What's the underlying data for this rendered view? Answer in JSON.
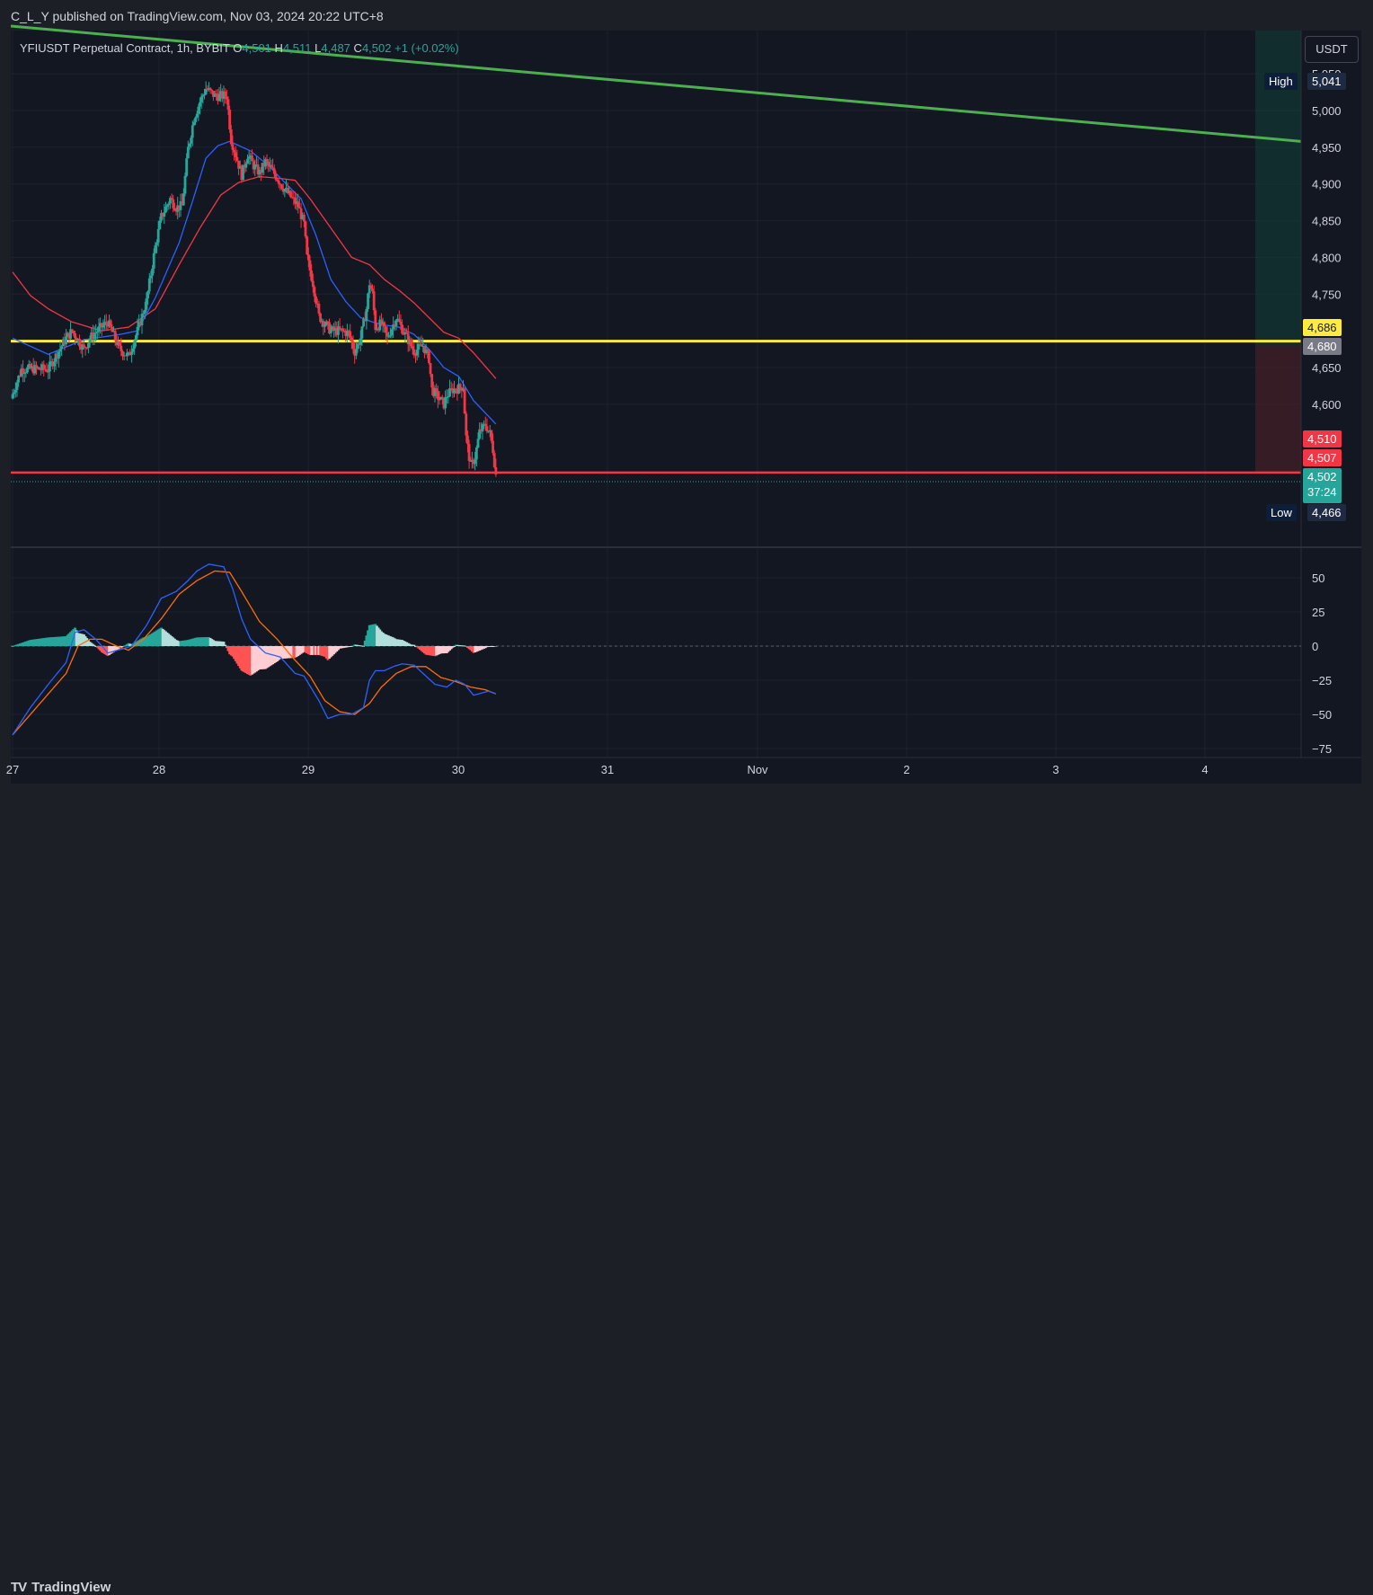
{
  "header": {
    "published_text": "C_L_Y published on TradingView.com, Nov 03, 2024 20:22 UTC+8"
  },
  "symbol": {
    "name": "YFIUSDT Perpetual Contract, 1h, BYBIT",
    "open_label": "O",
    "open": "4,501",
    "high_label": "H",
    "high": "4,511",
    "low_label": "L",
    "low": "4,487",
    "close_label": "C",
    "close": "4,502",
    "change": "+1 (+0.02%)"
  },
  "currency_label": "USDT",
  "price_tags": {
    "high_label": "High",
    "high_value": "5,041",
    "low_label": "Low",
    "low_value": "4,466",
    "yellow_line": "4,686",
    "gray_box": "4,680",
    "red_top": "4,510",
    "red_bottom": "4,507",
    "last_price": "4,502",
    "countdown": "37:24"
  },
  "price_axis": {
    "ticks": [
      "5,050",
      "5,000",
      "4,950",
      "4,900",
      "4,850",
      "4,800",
      "4,750",
      "4,650",
      "4,600"
    ]
  },
  "osc_axis": {
    "ticks": [
      "50",
      "25",
      "0",
      "−25",
      "−50",
      "−75"
    ]
  },
  "time_axis": {
    "labels": [
      "27",
      "28",
      "29",
      "30",
      "31",
      "Nov",
      "2",
      "3",
      "4"
    ]
  },
  "footer": {
    "logo_mark": "TV",
    "logo_text": "TradingView"
  },
  "colors": {
    "bull": "#26a69a",
    "bear": "#f23645",
    "ma_fast": "#2962ff",
    "ma_slow": "#f23645",
    "trendline": "#4caf50",
    "support_line": "#ffeb3b",
    "resistance_line": "#f23645",
    "macd": "#2962ff",
    "signal": "#ff6d00"
  },
  "chart_data": [
    {
      "type": "candlestick",
      "title": "YFIUSDT Perpetual Contract, 1h, BYBIT",
      "x_start": "Oct 27, 2024",
      "x_end": "Nov 04, 2024",
      "x_ticks": [
        "27",
        "28",
        "29",
        "30",
        "31",
        "Nov",
        "2",
        "3",
        "4"
      ],
      "y_ticks": [
        5050,
        5000,
        4950,
        4900,
        4850,
        4800,
        4750,
        4650,
        4600
      ],
      "ylim": [
        4425,
        5060
      ],
      "session_high": 5041,
      "session_low": 4466,
      "last": 4502,
      "horizontal_lines": [
        {
          "label": "4,686",
          "value": 4686,
          "color": "yellow"
        },
        {
          "label": "red",
          "value": 4507,
          "color": "red"
        }
      ],
      "trendline": {
        "from": {
          "x": "Oct 27 00:00",
          "y": 5115
        },
        "to": {
          "x": "Nov 04 15:00",
          "y": 4958
        }
      },
      "position_box": {
        "x": "Nov 04 09:00",
        "top": 5060,
        "mid": 4680,
        "bottom": 4507
      },
      "anchors": [
        [
          0,
          4614
        ],
        [
          6,
          4648
        ],
        [
          18,
          4648
        ],
        [
          24,
          4648
        ],
        [
          36,
          4690
        ],
        [
          40,
          4700
        ],
        [
          48,
          4675
        ],
        [
          52,
          4690
        ],
        [
          58,
          4702
        ],
        [
          64,
          4712
        ],
        [
          72,
          4675
        ],
        [
          78,
          4665
        ],
        [
          84,
          4700
        ],
        [
          90,
          4740
        ],
        [
          96,
          4815
        ],
        [
          100,
          4855
        ],
        [
          106,
          4880
        ],
        [
          110,
          4868
        ],
        [
          114,
          4870
        ],
        [
          118,
          4948
        ],
        [
          122,
          4990
        ],
        [
          126,
          5012
        ],
        [
          130,
          5030
        ],
        [
          136,
          5020
        ],
        [
          140,
          5020
        ],
        [
          144,
          5020
        ],
        [
          147,
          4960
        ],
        [
          150,
          4940
        ],
        [
          154,
          4912
        ],
        [
          158,
          4940
        ],
        [
          162,
          4925
        ],
        [
          166,
          4915
        ],
        [
          170,
          4930
        ],
        [
          174,
          4920
        ],
        [
          178,
          4908
        ],
        [
          182,
          4895
        ],
        [
          186,
          4885
        ],
        [
          192,
          4870
        ],
        [
          196,
          4845
        ],
        [
          198,
          4800
        ],
        [
          202,
          4765
        ],
        [
          206,
          4720
        ],
        [
          210,
          4710
        ],
        [
          214,
          4700
        ],
        [
          220,
          4700
        ],
        [
          226,
          4697
        ],
        [
          230,
          4672
        ],
        [
          234,
          4690
        ],
        [
          238,
          4730
        ],
        [
          240,
          4765
        ],
        [
          242,
          4750
        ],
        [
          244,
          4705
        ],
        [
          248,
          4710
        ],
        [
          252,
          4690
        ],
        [
          258,
          4718
        ],
        [
          264,
          4695
        ],
        [
          270,
          4672
        ],
        [
          276,
          4680
        ],
        [
          280,
          4662
        ],
        [
          282,
          4620
        ],
        [
          286,
          4610
        ],
        [
          290,
          4600
        ],
        [
          292,
          4612
        ],
        [
          296,
          4620
        ],
        [
          300,
          4622
        ],
        [
          303,
          4625
        ],
        [
          305,
          4555
        ],
        [
          308,
          4515
        ],
        [
          311,
          4528
        ],
        [
          314,
          4562
        ],
        [
          318,
          4572
        ],
        [
          321,
          4560
        ],
        [
          323,
          4538
        ],
        [
          325,
          4504
        ]
      ],
      "ma_fast_anchors": [
        [
          0,
          4690
        ],
        [
          24,
          4668
        ],
        [
          48,
          4688
        ],
        [
          72,
          4695
        ],
        [
          84,
          4700
        ],
        [
          96,
          4745
        ],
        [
          112,
          4820
        ],
        [
          120,
          4870
        ],
        [
          130,
          4935
        ],
        [
          138,
          4952
        ],
        [
          146,
          4958
        ],
        [
          160,
          4945
        ],
        [
          172,
          4925
        ],
        [
          184,
          4900
        ],
        [
          194,
          4880
        ],
        [
          204,
          4830
        ],
        [
          214,
          4770
        ],
        [
          224,
          4740
        ],
        [
          234,
          4718
        ],
        [
          242,
          4712
        ],
        [
          250,
          4708
        ],
        [
          260,
          4705
        ],
        [
          270,
          4695
        ],
        [
          280,
          4675
        ],
        [
          290,
          4650
        ],
        [
          300,
          4638
        ],
        [
          310,
          4605
        ],
        [
          325,
          4573
        ]
      ],
      "ma_slow_anchors": [
        [
          0,
          4780
        ],
        [
          12,
          4748
        ],
        [
          24,
          4730
        ],
        [
          40,
          4712
        ],
        [
          60,
          4700
        ],
        [
          78,
          4705
        ],
        [
          96,
          4730
        ],
        [
          112,
          4790
        ],
        [
          126,
          4840
        ],
        [
          140,
          4885
        ],
        [
          152,
          4902
        ],
        [
          166,
          4910
        ],
        [
          178,
          4908
        ],
        [
          190,
          4905
        ],
        [
          200,
          4880
        ],
        [
          214,
          4840
        ],
        [
          228,
          4800
        ],
        [
          240,
          4790
        ],
        [
          250,
          4770
        ],
        [
          260,
          4755
        ],
        [
          270,
          4738
        ],
        [
          280,
          4718
        ],
        [
          290,
          4698
        ],
        [
          300,
          4690
        ],
        [
          310,
          4670
        ],
        [
          325,
          4635
        ]
      ]
    },
    {
      "type": "macd",
      "y_ticks": [
        50,
        25,
        0,
        -25,
        -50,
        -75
      ],
      "ylim": [
        -80,
        65
      ],
      "macd_anchors": [
        [
          0,
          -65
        ],
        [
          12,
          -45
        ],
        [
          24,
          -28
        ],
        [
          36,
          -12
        ],
        [
          42,
          10
        ],
        [
          48,
          12
        ],
        [
          56,
          5
        ],
        [
          64,
          -5
        ],
        [
          74,
          -2
        ],
        [
          80,
          0
        ],
        [
          90,
          15
        ],
        [
          100,
          35
        ],
        [
          110,
          40
        ],
        [
          118,
          48
        ],
        [
          124,
          55
        ],
        [
          132,
          60
        ],
        [
          142,
          58
        ],
        [
          148,
          42
        ],
        [
          154,
          20
        ],
        [
          160,
          5
        ],
        [
          170,
          -5
        ],
        [
          180,
          -8
        ],
        [
          190,
          -20
        ],
        [
          196,
          -22
        ],
        [
          206,
          -40
        ],
        [
          212,
          -53
        ],
        [
          220,
          -50
        ],
        [
          228,
          -50
        ],
        [
          236,
          -45
        ],
        [
          240,
          -25
        ],
        [
          244,
          -18
        ],
        [
          250,
          -18
        ],
        [
          256,
          -15
        ],
        [
          262,
          -13
        ],
        [
          270,
          -14
        ],
        [
          278,
          -22
        ],
        [
          284,
          -28
        ],
        [
          292,
          -30
        ],
        [
          298,
          -25
        ],
        [
          304,
          -28
        ],
        [
          310,
          -36
        ],
        [
          320,
          -33
        ],
        [
          325,
          -35
        ]
      ],
      "signal_anchors": [
        [
          0,
          -65
        ],
        [
          20,
          -40
        ],
        [
          36,
          -20
        ],
        [
          44,
          0
        ],
        [
          52,
          5
        ],
        [
          60,
          5
        ],
        [
          70,
          0
        ],
        [
          78,
          -3
        ],
        [
          88,
          5
        ],
        [
          100,
          20
        ],
        [
          112,
          38
        ],
        [
          124,
          48
        ],
        [
          136,
          55
        ],
        [
          146,
          54
        ],
        [
          154,
          40
        ],
        [
          166,
          18
        ],
        [
          178,
          5
        ],
        [
          188,
          -8
        ],
        [
          200,
          -22
        ],
        [
          210,
          -40
        ],
        [
          220,
          -48
        ],
        [
          230,
          -50
        ],
        [
          240,
          -42
        ],
        [
          248,
          -30
        ],
        [
          258,
          -20
        ],
        [
          268,
          -15
        ],
        [
          278,
          -15
        ],
        [
          288,
          -23
        ],
        [
          298,
          -26
        ],
        [
          308,
          -30
        ],
        [
          318,
          -32
        ],
        [
          325,
          -35
        ]
      ]
    }
  ]
}
